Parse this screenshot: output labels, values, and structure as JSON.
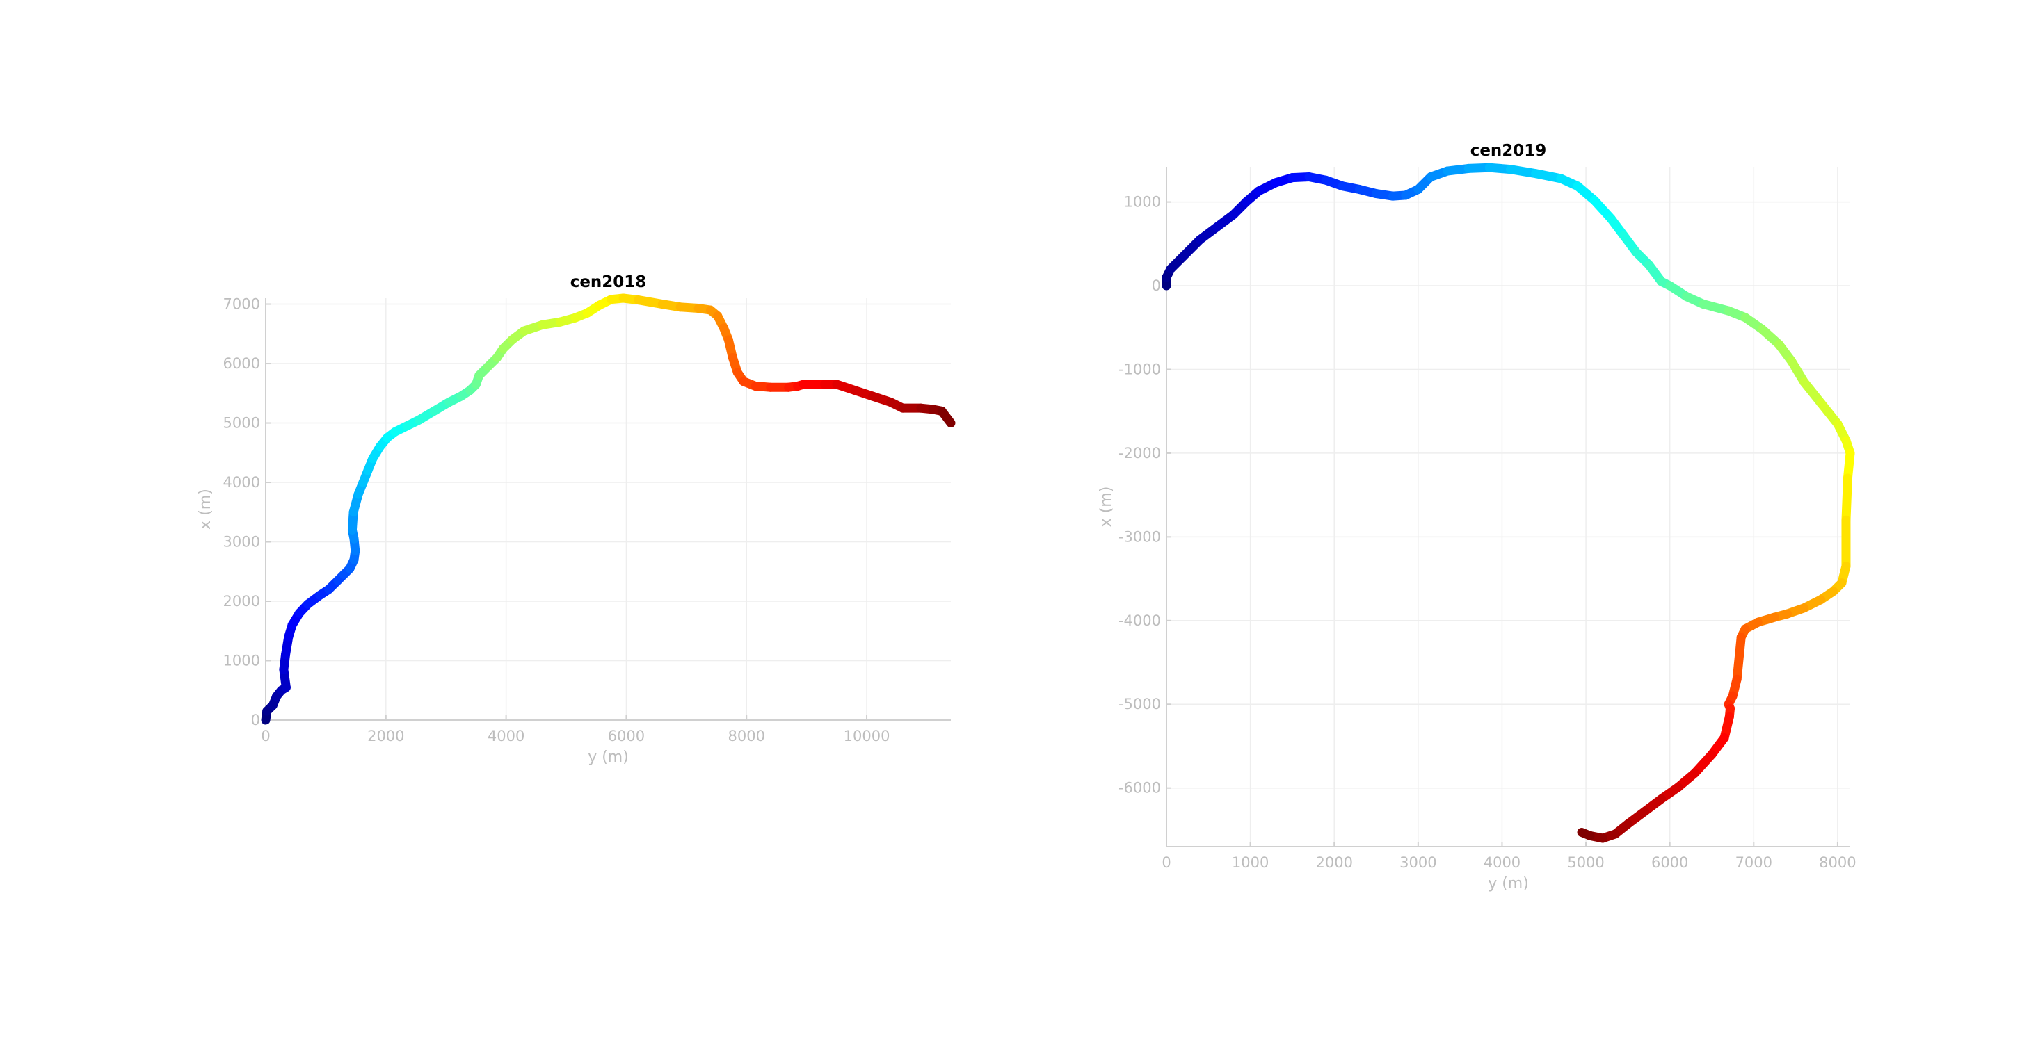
{
  "chart_data": [
    {
      "type": "line",
      "title": "cen2018",
      "xlabel": "y (m)",
      "ylabel": "x (m)",
      "xlim": [
        0,
        11400
      ],
      "ylim": [
        0,
        7100
      ],
      "xticks": [
        0,
        2000,
        4000,
        6000,
        8000,
        10000
      ],
      "yticks": [
        0,
        1000,
        2000,
        3000,
        4000,
        5000,
        6000,
        7000
      ],
      "grid": true,
      "colormap": "jet",
      "color_encodes": "order along trajectory (start blue, end dark red)",
      "series": [
        {
          "x": [
            0,
            20,
            120,
            180,
            260,
            340,
            300,
            330,
            380,
            440,
            560,
            700,
            900,
            1050,
            1200,
            1300,
            1400,
            1470,
            1490,
            1470,
            1440,
            1460,
            1540,
            1620,
            1700,
            1780,
            1900,
            2020,
            2150,
            2350,
            2550,
            2800,
            3050,
            3250,
            3400,
            3500,
            3550,
            3700,
            3850,
            3950,
            4100,
            4300,
            4600,
            4900,
            5150,
            5350,
            5550,
            5750,
            5950,
            6200,
            6600,
            6900,
            7200,
            7400,
            7520,
            7620,
            7700,
            7770,
            7850,
            7950,
            8150,
            8400,
            8700,
            8850,
            8950,
            9300,
            9500,
            9800,
            10100,
            10400,
            10600,
            10900,
            11100,
            11250,
            11400
          ],
          "y": [
            0,
            150,
            250,
            400,
            500,
            550,
            850,
            1100,
            1400,
            1600,
            1800,
            1950,
            2100,
            2200,
            2350,
            2450,
            2550,
            2700,
            2850,
            3050,
            3200,
            3500,
            3800,
            4000,
            4200,
            4400,
            4600,
            4750,
            4850,
            4950,
            5050,
            5200,
            5350,
            5450,
            5550,
            5650,
            5800,
            5950,
            6100,
            6250,
            6400,
            6550,
            6650,
            6700,
            6770,
            6850,
            6980,
            7080,
            7100,
            7070,
            7000,
            6950,
            6930,
            6900,
            6800,
            6600,
            6400,
            6100,
            5850,
            5700,
            5620,
            5600,
            5600,
            5620,
            5650,
            5650,
            5650,
            5550,
            5450,
            5350,
            5250,
            5250,
            5230,
            5200,
            5000
          ]
        }
      ]
    },
    {
      "type": "line",
      "title": "cen2019",
      "xlabel": "y (m)",
      "ylabel": "x (m)",
      "xlim": [
        0,
        8150
      ],
      "ylim": [
        -6700,
        1420
      ],
      "xticks": [
        0,
        1000,
        2000,
        3000,
        4000,
        5000,
        6000,
        7000,
        8000
      ],
      "yticks": [
        -6000,
        -5000,
        -4000,
        -3000,
        -2000,
        -1000,
        0,
        1000
      ],
      "grid": true,
      "colormap": "jet",
      "color_encodes": "order along trajectory (start blue, end dark red)",
      "series": [
        {
          "x": [
            0,
            0,
            50,
            200,
            400,
            600,
            800,
            950,
            1100,
            1300,
            1500,
            1700,
            1900,
            2100,
            2300,
            2500,
            2700,
            2850,
            3000,
            3150,
            3350,
            3600,
            3850,
            4100,
            4400,
            4700,
            4900,
            5100,
            5300,
            5450,
            5600,
            5750,
            5900,
            6000,
            6200,
            6400,
            6700,
            6900,
            7100,
            7300,
            7450,
            7600,
            7800,
            8000,
            8100,
            8150,
            8120,
            8100,
            8100,
            8050,
            7950,
            7800,
            7600,
            7400,
            7250,
            7050,
            6900,
            6850,
            6800,
            6750,
            6700,
            6720,
            6710,
            6650,
            6500,
            6300,
            6100,
            5900,
            5700,
            5500,
            5350,
            5200,
            5050,
            4950
          ],
          "y": [
            0,
            100,
            200,
            350,
            550,
            700,
            850,
            1000,
            1130,
            1230,
            1290,
            1300,
            1260,
            1190,
            1150,
            1100,
            1070,
            1080,
            1150,
            1300,
            1370,
            1400,
            1410,
            1390,
            1340,
            1280,
            1190,
            1020,
            800,
            600,
            400,
            250,
            50,
            0,
            -130,
            -220,
            -300,
            -380,
            -520,
            -700,
            -900,
            -1150,
            -1400,
            -1650,
            -1850,
            -2000,
            -2300,
            -2800,
            -3350,
            -3550,
            -3650,
            -3750,
            -3850,
            -3920,
            -3960,
            -4020,
            -4100,
            -4200,
            -4700,
            -4900,
            -5000,
            -5050,
            -5150,
            -5400,
            -5600,
            -5820,
            -5990,
            -6130,
            -6280,
            -6430,
            -6550,
            -6600,
            -6570,
            -6530
          ]
        }
      ]
    }
  ]
}
